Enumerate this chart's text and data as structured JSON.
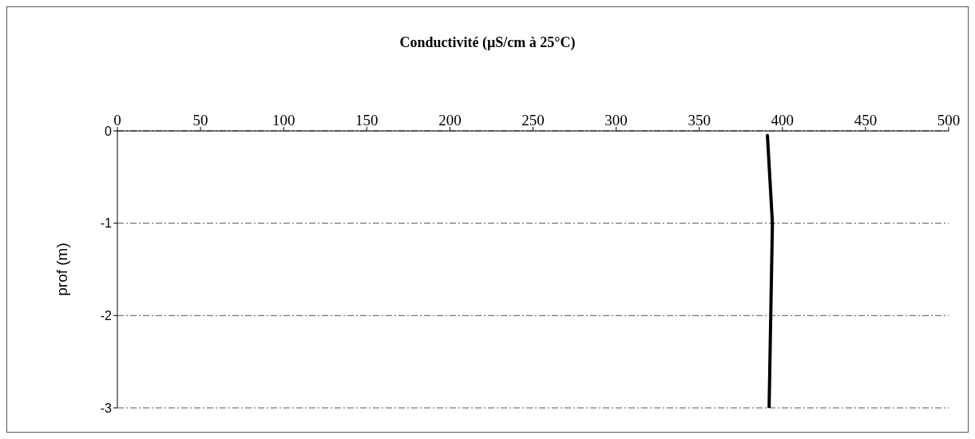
{
  "chart_data": {
    "type": "line",
    "title": "Conductivité (µS/cm à 25°C)",
    "ylabel": "prof (m)",
    "x": [
      391,
      394,
      393,
      392
    ],
    "values": [
      -0.05,
      -1,
      -2,
      -3
    ],
    "color": "#000000",
    "xlim": [
      0,
      500
    ],
    "xticks": [
      0,
      50,
      100,
      150,
      200,
      250,
      300,
      350,
      400,
      450,
      500
    ],
    "ylim": [
      -3,
      0
    ],
    "yticks": [
      0,
      -1,
      -2,
      -3
    ],
    "grid": "y",
    "legend": false,
    "marker": "none",
    "line_style": "solid"
  }
}
